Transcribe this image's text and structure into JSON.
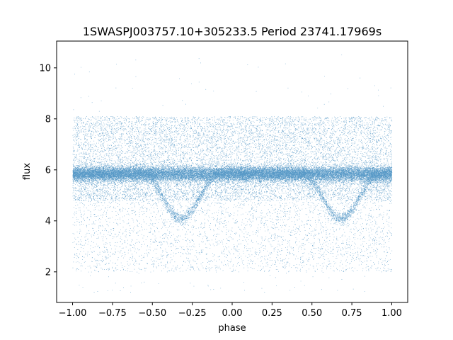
{
  "chart_data": {
    "type": "scatter",
    "title": "1SWASPJ003757.10+305233.5 Period 23741.17969s",
    "xlabel": "phase",
    "ylabel": "flux",
    "xlim": [
      -1.1,
      1.1
    ],
    "ylim": [
      0.8,
      11.05
    ],
    "xticks": [
      -1.0,
      -0.75,
      -0.5,
      -0.25,
      0.0,
      0.25,
      0.5,
      0.75,
      1.0
    ],
    "xtick_labels": [
      "−1.00",
      "−0.75",
      "−0.50",
      "−0.25",
      "0.00",
      "0.25",
      "0.50",
      "0.75",
      "1.00"
    ],
    "yticks": [
      2,
      4,
      6,
      8,
      10
    ],
    "ytick_labels": [
      "2",
      "4",
      "6",
      "8",
      "10"
    ],
    "grid": false,
    "color": "#1f77b4",
    "series": [
      {
        "phase_range": [
          -1.0,
          1.0
        ],
        "baseline_flux": 5.85,
        "eclipse_centers": [
          -0.32,
          0.68
        ],
        "eclipse_min_flux": 4.1,
        "scatter_band": [
          4.8,
          8.1
        ],
        "outlier_range": [
          1.2,
          10.6
        ],
        "approx_points": 60000
      }
    ]
  }
}
